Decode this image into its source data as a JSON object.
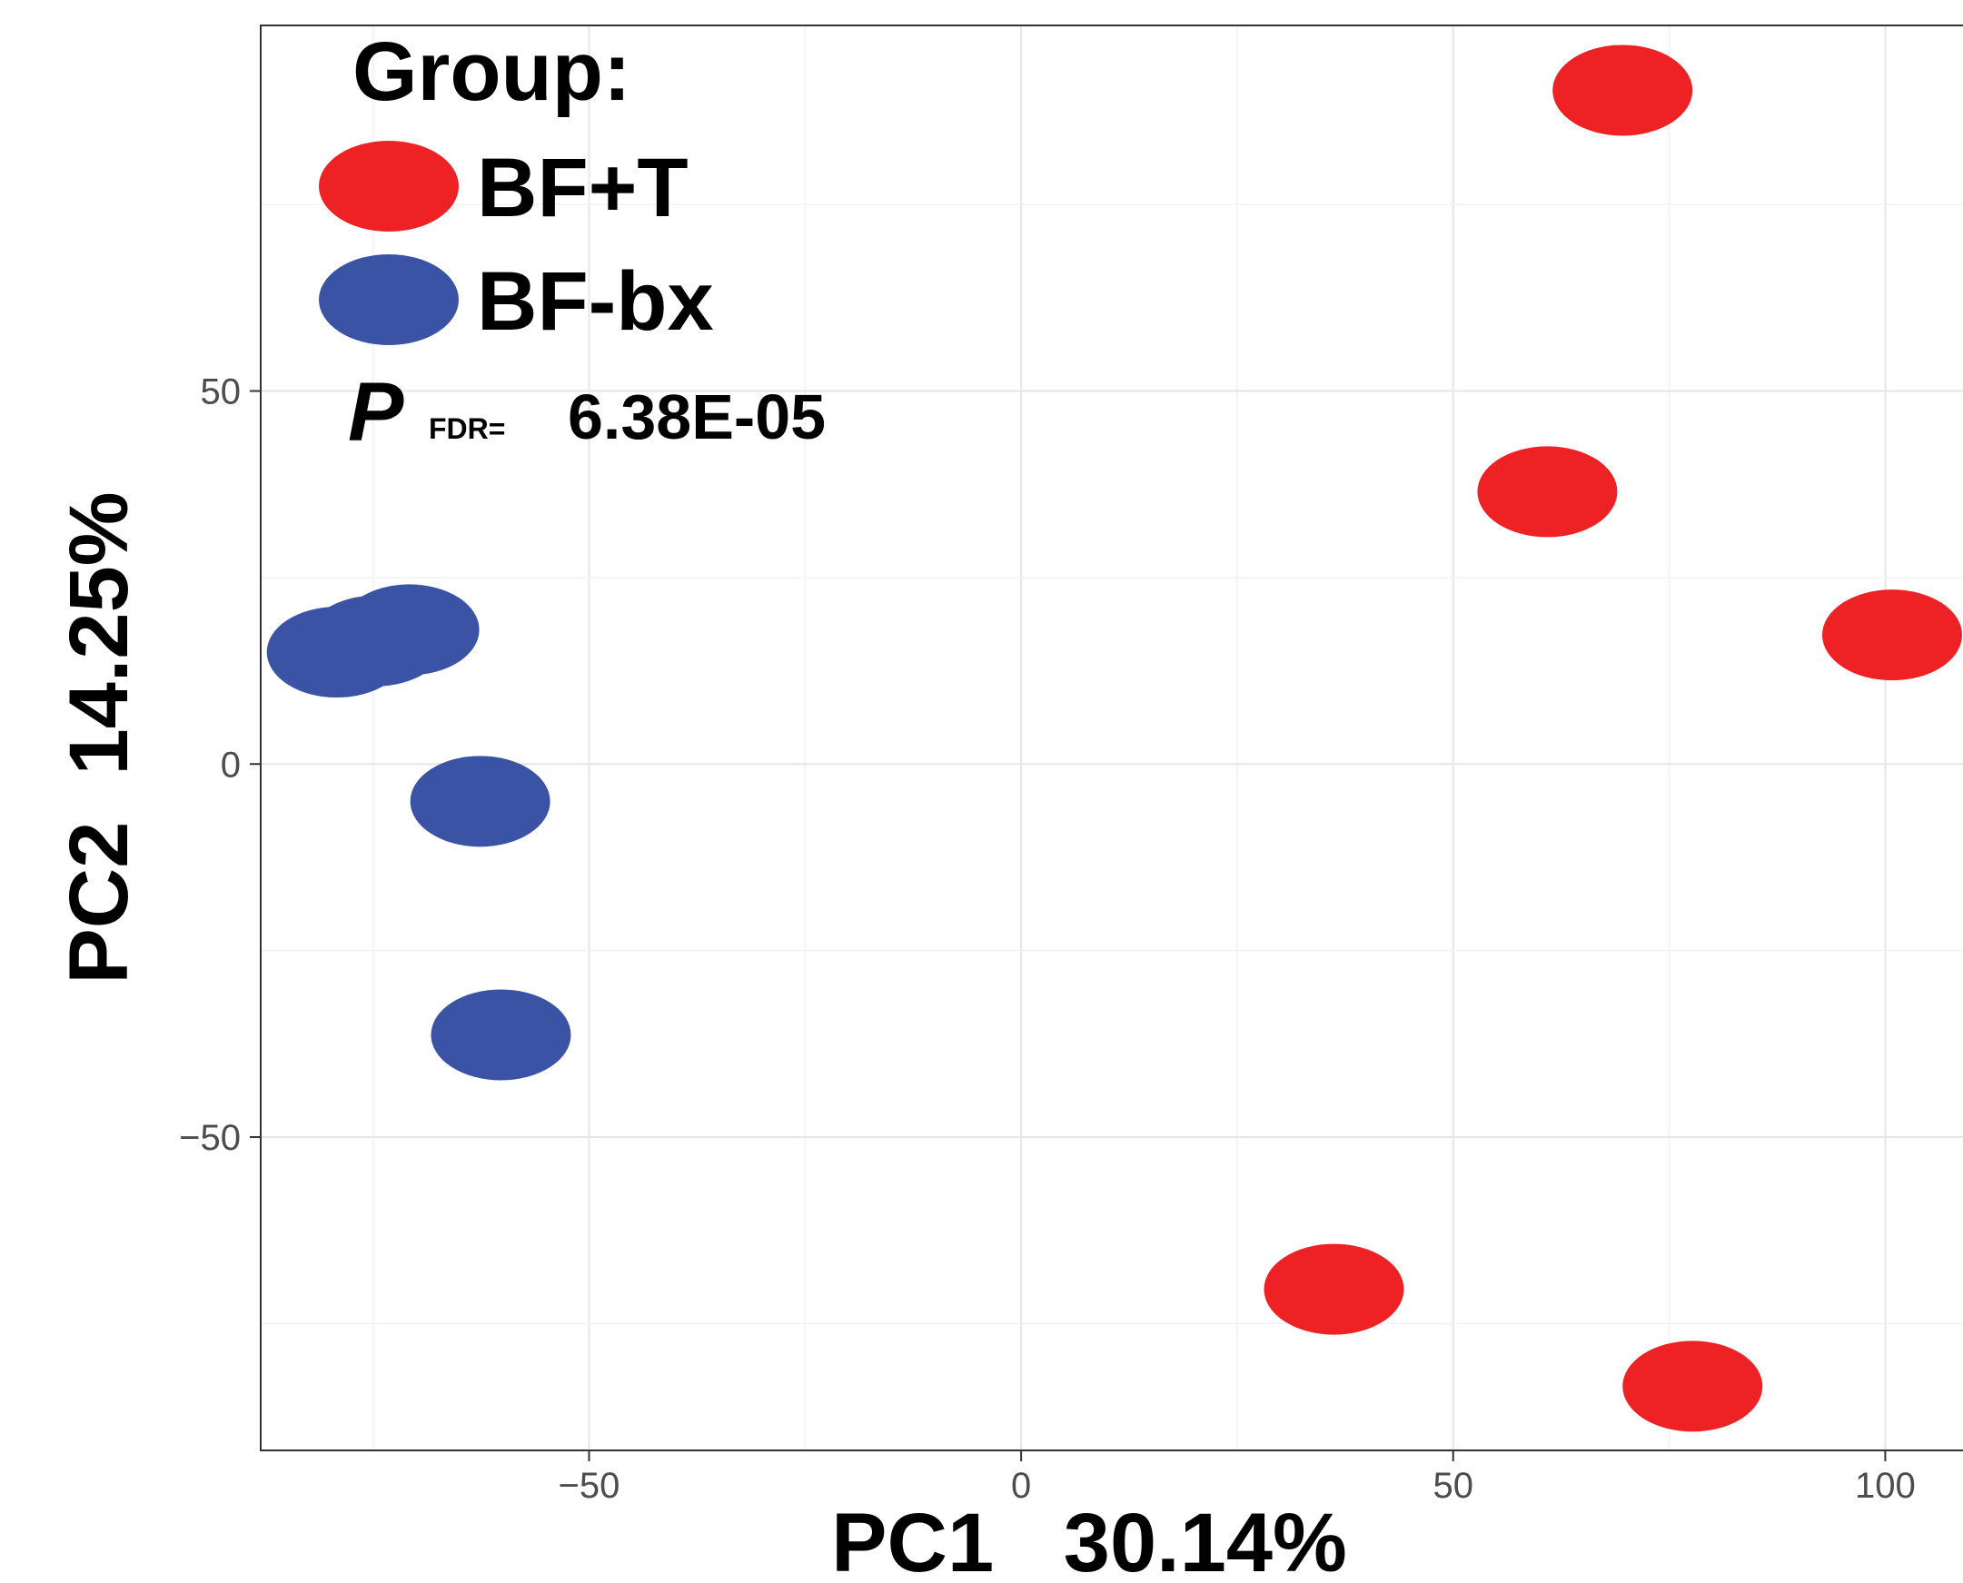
{
  "chart_data": {
    "type": "scatter",
    "xlabel": "PC1   30.14%",
    "ylabel": "PC2  14.25%",
    "xlim": [
      -88,
      109
    ],
    "ylim": [
      -92,
      99
    ],
    "xticks": [
      -50,
      0,
      50,
      100
    ],
    "yticks": [
      -50,
      0,
      50
    ],
    "xtick_labels": [
      "−50",
      "0",
      "50",
      "100"
    ],
    "ytick_labels": [
      "−50",
      "0",
      "50"
    ],
    "grid": true,
    "legend": {
      "title": "Group:",
      "position": "top-left",
      "entries": [
        "BF+T",
        "BF-bx"
      ]
    },
    "annotation": {
      "p_symbol": "P",
      "p_subscript": "FDR=",
      "p_value": "6.38E-05"
    },
    "series": [
      {
        "name": "BF+T",
        "color": "#ee2224",
        "points": [
          {
            "x": 69.6,
            "y": 90.3
          },
          {
            "x": 60.9,
            "y": 36.5
          },
          {
            "x": 100.8,
            "y": 17.3
          },
          {
            "x": 36.2,
            "y": -70.4
          },
          {
            "x": 77.7,
            "y": -83.4
          }
        ]
      },
      {
        "name": "BF-bx",
        "color": "#3a53a4",
        "points": [
          {
            "x": -79.2,
            "y": 15.0
          },
          {
            "x": -74.7,
            "y": 16.5
          },
          {
            "x": -70.8,
            "y": 18.0
          },
          {
            "x": -62.6,
            "y": -5.0
          },
          {
            "x": -60.2,
            "y": -36.3
          }
        ]
      }
    ]
  }
}
